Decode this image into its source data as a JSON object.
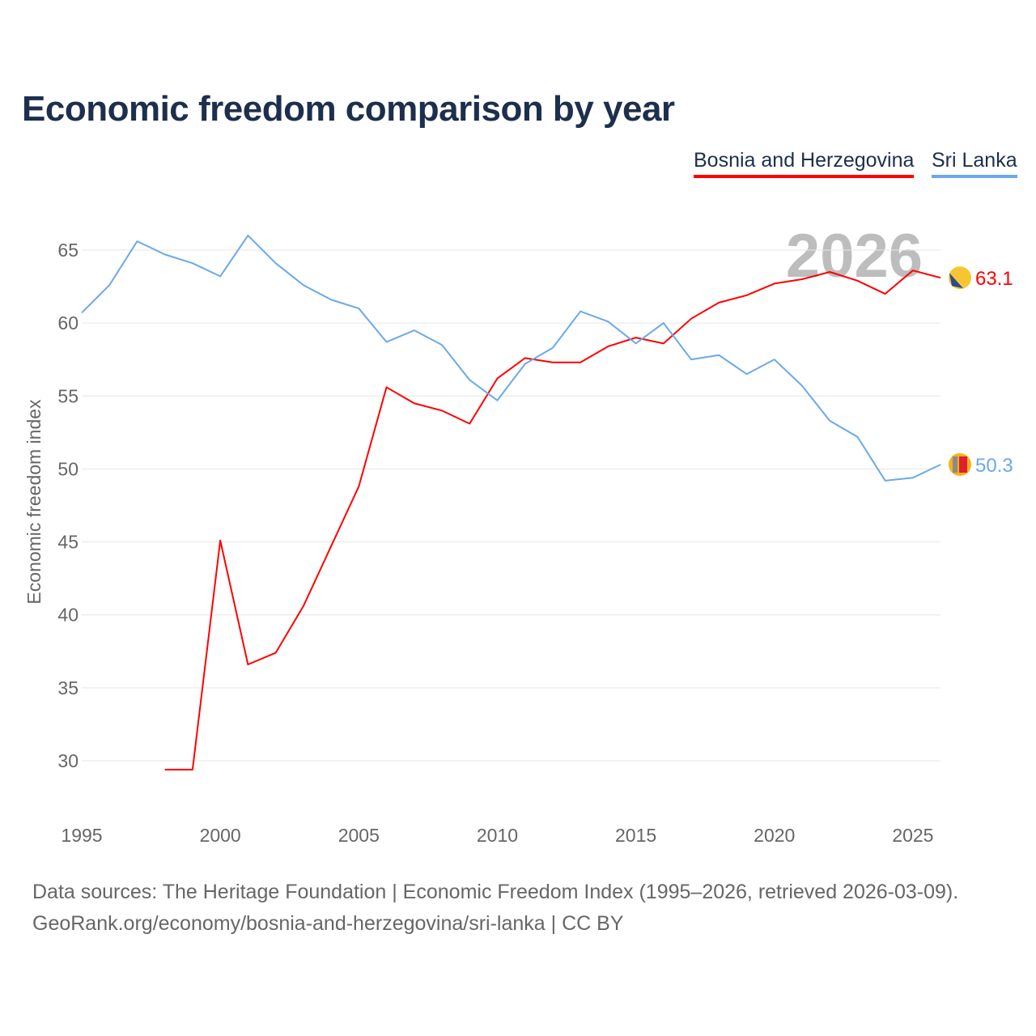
{
  "title": "Economic freedom comparison by year",
  "footer": {
    "line1": "Data sources: The Heritage Foundation | Economic Freedom Index (1995–2026, retrieved 2026-03-09).",
    "line2": "GeoRank.org/economy/bosnia-and-herzegovina/sri-lanka | CC BY"
  },
  "chart_data": {
    "type": "line",
    "title": "Economic freedom comparison by year",
    "xlabel": "",
    "ylabel": "Economic freedom index",
    "year_watermark": "2026",
    "xlim": [
      1995,
      2026
    ],
    "ylim": [
      27,
      67
    ],
    "xticks": [
      1995,
      2000,
      2005,
      2010,
      2015,
      2020,
      2025
    ],
    "yticks": [
      30,
      35,
      40,
      45,
      50,
      55,
      60,
      65
    ],
    "grid": true,
    "legend_position": "top-right",
    "series": [
      {
        "name": "Bosnia and Herzegovina",
        "color": "#ff0000",
        "end_label": "63.1",
        "x": [
          1998,
          1999,
          2000,
          2001,
          2002,
          2003,
          2004,
          2005,
          2006,
          2007,
          2008,
          2009,
          2010,
          2011,
          2012,
          2013,
          2014,
          2015,
          2016,
          2017,
          2018,
          2019,
          2020,
          2021,
          2022,
          2023,
          2024,
          2025,
          2026
        ],
        "values": [
          29.4,
          29.4,
          45.1,
          36.6,
          37.4,
          40.6,
          44.7,
          48.8,
          55.6,
          54.5,
          54.0,
          53.1,
          56.2,
          57.6,
          57.3,
          57.3,
          58.4,
          59.0,
          58.6,
          60.3,
          61.4,
          61.9,
          62.7,
          63.0,
          63.5,
          62.9,
          62.0,
          63.6,
          63.1
        ]
      },
      {
        "name": "Sri Lanka",
        "color": "#6aa9e9",
        "end_label": "50.3",
        "x": [
          1995,
          1996,
          1997,
          1998,
          1999,
          2000,
          2001,
          2002,
          2003,
          2004,
          2005,
          2006,
          2007,
          2008,
          2009,
          2010,
          2011,
          2012,
          2013,
          2014,
          2015,
          2016,
          2017,
          2018,
          2019,
          2020,
          2021,
          2022,
          2023,
          2024,
          2025,
          2026
        ],
        "values": [
          60.7,
          62.6,
          65.6,
          64.7,
          64.1,
          63.2,
          66.0,
          64.1,
          62.6,
          61.6,
          61.0,
          58.7,
          59.5,
          58.5,
          56.1,
          54.7,
          57.2,
          58.3,
          60.8,
          60.1,
          58.6,
          60.0,
          57.5,
          57.8,
          56.5,
          57.5,
          55.7,
          53.3,
          52.2,
          49.2,
          49.4,
          50.3
        ]
      }
    ]
  }
}
